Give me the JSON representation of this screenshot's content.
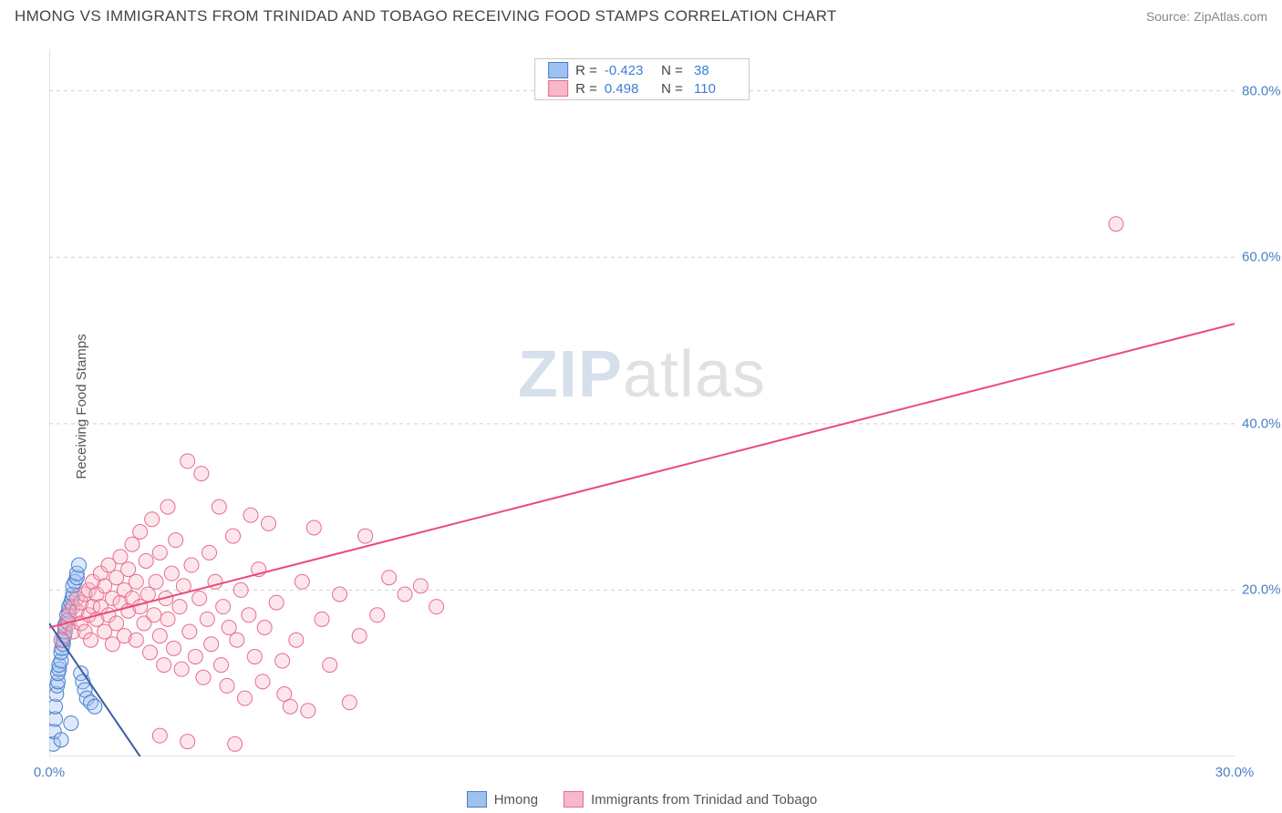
{
  "header": {
    "title": "HMONG VS IMMIGRANTS FROM TRINIDAD AND TOBAGO RECEIVING FOOD STAMPS CORRELATION CHART",
    "source": "Source: ZipAtlas.com"
  },
  "watermark": {
    "zip": "ZIP",
    "atlas": "atlas"
  },
  "chart": {
    "type": "scatter",
    "background_color": "#ffffff",
    "grid_color": "#d0d0d0",
    "axis_color": "#c8c8c8",
    "y_label": "Receiving Food Stamps",
    "y_label_fontsize": 15,
    "xlim": [
      0,
      30
    ],
    "ylim": [
      0,
      85
    ],
    "x_ticks": [
      0,
      5,
      10,
      15,
      20,
      25,
      30
    ],
    "x_tick_labels": [
      "0.0%",
      "",
      "",
      "",
      "",
      "",
      "30.0%"
    ],
    "y_ticks": [
      20,
      40,
      60,
      80
    ],
    "y_tick_labels": [
      "20.0%",
      "40.0%",
      "60.0%",
      "80.0%"
    ],
    "tick_label_color": "#4a7ec9",
    "marker_radius": 8,
    "marker_fill_opacity": 0.35,
    "line_width": 2,
    "series": [
      {
        "name": "Hmong",
        "fill_color": "#9fc1f0",
        "stroke_color": "#4a7ec9",
        "line_color": "#3b5fa0",
        "R": "-0.423",
        "N": "38",
        "trend": {
          "x1": 0,
          "y1": 16,
          "x2": 2.3,
          "y2": 0
        },
        "points": [
          [
            0.1,
            1.5
          ],
          [
            0.12,
            3.0
          ],
          [
            0.15,
            4.5
          ],
          [
            0.15,
            6.0
          ],
          [
            0.18,
            7.5
          ],
          [
            0.2,
            8.5
          ],
          [
            0.22,
            9.0
          ],
          [
            0.22,
            10.0
          ],
          [
            0.25,
            10.5
          ],
          [
            0.25,
            11.0
          ],
          [
            0.3,
            11.5
          ],
          [
            0.3,
            12.5
          ],
          [
            0.32,
            13.0
          ],
          [
            0.35,
            13.5
          ],
          [
            0.35,
            14.0
          ],
          [
            0.38,
            14.5
          ],
          [
            0.4,
            15.0
          ],
          [
            0.4,
            15.8
          ],
          [
            0.45,
            16.3
          ],
          [
            0.45,
            17.0
          ],
          [
            0.5,
            17.5
          ],
          [
            0.5,
            18.0
          ],
          [
            0.55,
            18.5
          ],
          [
            0.58,
            19.0
          ],
          [
            0.6,
            19.5
          ],
          [
            0.6,
            20.5
          ],
          [
            0.65,
            21.0
          ],
          [
            0.7,
            21.5
          ],
          [
            0.7,
            22.0
          ],
          [
            0.75,
            23.0
          ],
          [
            0.8,
            10.0
          ],
          [
            0.85,
            9.0
          ],
          [
            0.9,
            8.0
          ],
          [
            0.95,
            7.0
          ],
          [
            1.05,
            6.5
          ],
          [
            1.15,
            6.0
          ],
          [
            0.3,
            2.0
          ],
          [
            0.55,
            4.0
          ]
        ]
      },
      {
        "name": "Immigrants from Trinidad and Tobago",
        "fill_color": "#f7b8c9",
        "stroke_color": "#e86b8f",
        "line_color": "#e94b7a",
        "R": "0.498",
        "N": "110",
        "trend": {
          "x1": 0,
          "y1": 15.5,
          "x2": 30,
          "y2": 52
        },
        "points": [
          [
            0.3,
            14.0
          ],
          [
            0.4,
            15.5
          ],
          [
            0.5,
            16.0
          ],
          [
            0.5,
            17.0
          ],
          [
            0.6,
            15.0
          ],
          [
            0.6,
            18.0
          ],
          [
            0.7,
            17.5
          ],
          [
            0.7,
            19.0
          ],
          [
            0.8,
            16.0
          ],
          [
            0.8,
            18.5
          ],
          [
            0.9,
            15.0
          ],
          [
            0.9,
            19.5
          ],
          [
            1.0,
            17.0
          ],
          [
            1.0,
            20.0
          ],
          [
            1.05,
            14.0
          ],
          [
            1.1,
            18.0
          ],
          [
            1.1,
            21.0
          ],
          [
            1.2,
            16.5
          ],
          [
            1.2,
            19.5
          ],
          [
            1.3,
            18.0
          ],
          [
            1.3,
            22.0
          ],
          [
            1.4,
            15.0
          ],
          [
            1.4,
            20.5
          ],
          [
            1.5,
            17.0
          ],
          [
            1.5,
            23.0
          ],
          [
            1.6,
            19.0
          ],
          [
            1.6,
            13.5
          ],
          [
            1.7,
            21.5
          ],
          [
            1.7,
            16.0
          ],
          [
            1.8,
            18.5
          ],
          [
            1.8,
            24.0
          ],
          [
            1.9,
            20.0
          ],
          [
            1.9,
            14.5
          ],
          [
            2.0,
            22.5
          ],
          [
            2.0,
            17.5
          ],
          [
            2.1,
            19.0
          ],
          [
            2.1,
            25.5
          ],
          [
            2.2,
            14.0
          ],
          [
            2.2,
            21.0
          ],
          [
            2.3,
            18.0
          ],
          [
            2.3,
            27.0
          ],
          [
            2.4,
            16.0
          ],
          [
            2.45,
            23.5
          ],
          [
            2.5,
            19.5
          ],
          [
            2.55,
            12.5
          ],
          [
            2.6,
            28.5
          ],
          [
            2.65,
            17.0
          ],
          [
            2.7,
            21.0
          ],
          [
            2.8,
            14.5
          ],
          [
            2.8,
            24.5
          ],
          [
            2.9,
            11.0
          ],
          [
            2.95,
            19.0
          ],
          [
            3.0,
            30.0
          ],
          [
            3.0,
            16.5
          ],
          [
            3.1,
            22.0
          ],
          [
            3.15,
            13.0
          ],
          [
            3.2,
            26.0
          ],
          [
            3.3,
            18.0
          ],
          [
            3.35,
            10.5
          ],
          [
            3.4,
            20.5
          ],
          [
            3.5,
            35.5
          ],
          [
            3.55,
            15.0
          ],
          [
            3.6,
            23.0
          ],
          [
            3.7,
            12.0
          ],
          [
            3.8,
            19.0
          ],
          [
            3.85,
            34.0
          ],
          [
            3.9,
            9.5
          ],
          [
            4.0,
            16.5
          ],
          [
            4.05,
            24.5
          ],
          [
            4.1,
            13.5
          ],
          [
            4.2,
            21.0
          ],
          [
            4.3,
            30.0
          ],
          [
            4.35,
            11.0
          ],
          [
            4.4,
            18.0
          ],
          [
            4.5,
            8.5
          ],
          [
            4.55,
            15.5
          ],
          [
            4.65,
            26.5
          ],
          [
            4.75,
            14.0
          ],
          [
            4.85,
            20.0
          ],
          [
            4.95,
            7.0
          ],
          [
            5.05,
            17.0
          ],
          [
            5.1,
            29.0
          ],
          [
            5.2,
            12.0
          ],
          [
            5.3,
            22.5
          ],
          [
            5.4,
            9.0
          ],
          [
            5.45,
            15.5
          ],
          [
            5.55,
            28.0
          ],
          [
            5.75,
            18.5
          ],
          [
            5.9,
            11.5
          ],
          [
            5.95,
            7.5
          ],
          [
            6.1,
            6.0
          ],
          [
            6.25,
            14.0
          ],
          [
            6.4,
            21.0
          ],
          [
            6.55,
            5.5
          ],
          [
            6.7,
            27.5
          ],
          [
            6.9,
            16.5
          ],
          [
            7.1,
            11.0
          ],
          [
            7.35,
            19.5
          ],
          [
            7.6,
            6.5
          ],
          [
            7.85,
            14.5
          ],
          [
            8.0,
            26.5
          ],
          [
            8.3,
            17.0
          ],
          [
            8.6,
            21.5
          ],
          [
            9.0,
            19.5
          ],
          [
            9.4,
            20.5
          ],
          [
            9.8,
            18.0
          ],
          [
            27.0,
            64.0
          ],
          [
            4.7,
            1.5
          ],
          [
            3.5,
            1.8
          ],
          [
            2.8,
            2.5
          ]
        ]
      }
    ]
  },
  "legend": {
    "items": [
      {
        "label": "Hmong",
        "fill": "#9fc1f0",
        "stroke": "#4a7ec9"
      },
      {
        "label": "Immigrants from Trinidad and Tobago",
        "fill": "#f7b8c9",
        "stroke": "#e86b8f"
      }
    ]
  }
}
